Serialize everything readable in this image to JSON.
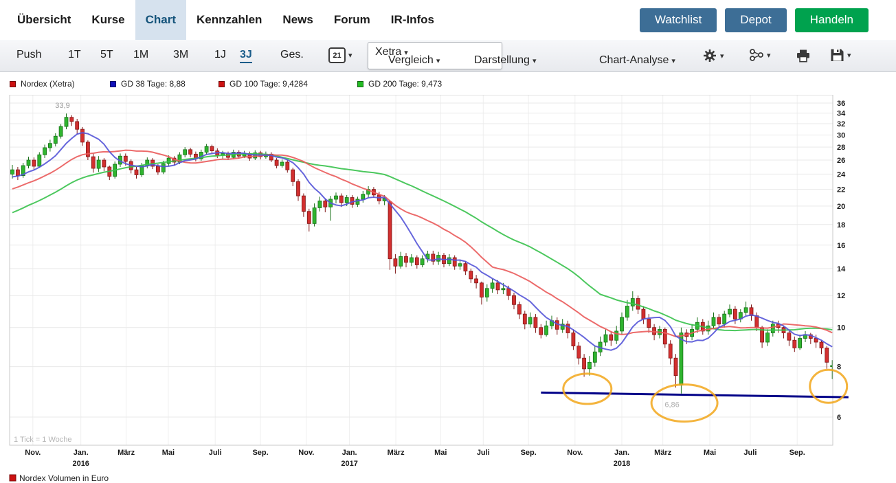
{
  "header": {
    "nav": [
      {
        "label": "Übersicht"
      },
      {
        "label": "Kurse"
      },
      {
        "label": "Chart",
        "active": true
      },
      {
        "label": "Kennzahlen"
      },
      {
        "label": "News"
      },
      {
        "label": "Forum"
      },
      {
        "label": "IR-Infos"
      }
    ],
    "actions": [
      {
        "label": "Watchlist",
        "color": "#3d6e96"
      },
      {
        "label": "Depot",
        "color": "#3d6e96"
      },
      {
        "label": "Handeln",
        "color": "#00a24e"
      }
    ]
  },
  "toolbar": {
    "ranges": [
      "Push",
      "1T",
      "5T",
      "1M",
      "3M",
      "1J",
      "3J",
      "Ges."
    ],
    "active_range": "3J",
    "calendar_day": "21",
    "exchange_value": "Xetra",
    "menus": [
      "Vergleich",
      "Darstellung",
      "Chart-Analyse"
    ]
  },
  "legend": [
    {
      "label": "Nordex (Xetra)",
      "color": "#cc1111"
    },
    {
      "label": "GD 38 Tage: 8,88",
      "color": "#1111bb"
    },
    {
      "label": "GD 100 Tage: 9,4284",
      "color": "#cc1111"
    },
    {
      "label": "GD 200 Tage: 9,473",
      "color": "#22bb22"
    }
  ],
  "chart_data": {
    "type": "candlestick",
    "instrument": "Nordex (Xetra)",
    "tick_note": "1 Tick = 1 Woche",
    "volume_legend": "Nordex Volumen in Euro",
    "y_scale": "log",
    "y_ticks": [
      36,
      34,
      32,
      30,
      28,
      26,
      24,
      22,
      20,
      18,
      16,
      14,
      12,
      10,
      8,
      6
    ],
    "x_labels": [
      {
        "text": "Nov.",
        "week": 3.8
      },
      {
        "text": "Jan.",
        "week": 12.7,
        "year": "2016"
      },
      {
        "text": "März",
        "week": 21.1
      },
      {
        "text": "Mai",
        "week": 28.9
      },
      {
        "text": "Juli",
        "week": 37.6
      },
      {
        "text": "Sep.",
        "week": 46.0
      },
      {
        "text": "Nov.",
        "week": 54.5
      },
      {
        "text": "Jan.",
        "week": 62.5,
        "year": "2017"
      },
      {
        "text": "März",
        "week": 71.1
      },
      {
        "text": "Mai",
        "week": 79.4
      },
      {
        "text": "Juli",
        "week": 87.3
      },
      {
        "text": "Sep.",
        "week": 95.7
      },
      {
        "text": "Nov.",
        "week": 104.3
      },
      {
        "text": "Jan.",
        "week": 113.0,
        "year": "2018"
      },
      {
        "text": "März",
        "week": 120.6
      },
      {
        "text": "Mai",
        "week": 129.3
      },
      {
        "text": "Juli",
        "week": 136.8
      },
      {
        "text": "Sep.",
        "week": 145.5
      }
    ],
    "candle_colors": {
      "up": "#2fb52f",
      "up_border": "#187018",
      "down": "#d22f2f",
      "down_border": "#801616"
    },
    "moving_averages": [
      {
        "id": "gd-200",
        "label": "GD 200 Tage",
        "value": "9,473",
        "window_weeks": 40,
        "color": "#39c24c"
      },
      {
        "id": "gd-100",
        "label": "GD 100 Tage",
        "value": "9,4284",
        "window_weeks": 20,
        "color": "#ea5b5b"
      },
      {
        "id": "gd-38",
        "label": "GD 38 Tage",
        "value": "8,88",
        "window_weeks": 8,
        "color": "#5555d8"
      }
    ],
    "seed_closes": [
      13.5,
      13.8,
      14.2,
      14.0,
      14.6,
      15.0,
      15.3,
      15.1,
      15.8,
      16.2,
      16.0,
      16.5,
      17.0,
      17.4,
      17.2,
      17.8,
      18.3,
      18.0,
      18.6,
      19.0,
      19.4,
      19.2,
      19.8,
      20.3,
      20.0,
      20.6,
      21.0,
      21.4,
      21.2,
      21.8,
      22.3,
      22.0,
      22.6,
      23.0,
      23.4,
      23.2,
      23.0,
      23.6,
      24.0,
      24.2
    ],
    "candles_ohlc": [
      [
        24.0,
        25.3,
        23.4,
        24.6
      ],
      [
        24.6,
        25.0,
        23.2,
        23.8
      ],
      [
        23.8,
        25.6,
        23.5,
        25.2
      ],
      [
        25.2,
        26.5,
        24.8,
        26.0
      ],
      [
        26.0,
        26.4,
        24.6,
        25.1
      ],
      [
        25.1,
        27.2,
        24.9,
        26.8
      ],
      [
        26.8,
        28.4,
        26.3,
        27.9
      ],
      [
        27.9,
        29.2,
        27.3,
        28.6
      ],
      [
        28.6,
        30.3,
        28.1,
        29.8
      ],
      [
        29.8,
        31.9,
        29.4,
        31.5
      ],
      [
        31.5,
        33.9,
        31.0,
        33.2
      ],
      [
        33.2,
        33.6,
        31.6,
        32.4
      ],
      [
        32.4,
        32.9,
        30.2,
        31.0
      ],
      [
        31.0,
        31.4,
        28.2,
        28.8
      ],
      [
        28.8,
        29.1,
        26.0,
        26.5
      ],
      [
        26.5,
        27.0,
        24.2,
        24.8
      ],
      [
        24.8,
        26.6,
        24.3,
        26.0
      ],
      [
        26.0,
        26.3,
        24.4,
        25.0
      ],
      [
        25.0,
        25.2,
        23.2,
        23.7
      ],
      [
        23.7,
        25.8,
        23.4,
        25.4
      ],
      [
        25.4,
        27.0,
        25.0,
        26.6
      ],
      [
        26.6,
        27.0,
        25.2,
        25.8
      ],
      [
        25.8,
        26.1,
        24.1,
        24.6
      ],
      [
        24.6,
        25.0,
        23.4,
        23.9
      ],
      [
        23.9,
        25.6,
        23.6,
        25.2
      ],
      [
        25.2,
        26.4,
        24.8,
        26.0
      ],
      [
        26.0,
        26.3,
        24.7,
        25.1
      ],
      [
        25.1,
        25.4,
        23.9,
        24.3
      ],
      [
        24.3,
        25.9,
        24.0,
        25.5
      ],
      [
        25.5,
        26.7,
        25.1,
        26.3
      ],
      [
        26.3,
        26.6,
        25.2,
        25.7
      ],
      [
        25.7,
        27.2,
        25.4,
        26.8
      ],
      [
        26.8,
        28.0,
        26.4,
        27.6
      ],
      [
        27.6,
        27.9,
        26.4,
        26.9
      ],
      [
        26.9,
        27.3,
        25.8,
        26.2
      ],
      [
        26.2,
        27.6,
        25.9,
        27.2
      ],
      [
        27.2,
        28.5,
        26.8,
        28.1
      ],
      [
        28.1,
        28.4,
        27.0,
        27.4
      ],
      [
        27.4,
        27.8,
        26.3,
        26.7
      ],
      [
        26.7,
        27.4,
        26.2,
        27.0
      ],
      [
        27.0,
        27.3,
        26.0,
        26.4
      ],
      [
        26.4,
        27.6,
        26.1,
        27.2
      ],
      [
        27.2,
        27.5,
        26.2,
        26.6
      ],
      [
        26.6,
        27.4,
        26.3,
        27.0
      ],
      [
        27.0,
        27.3,
        25.9,
        26.3
      ],
      [
        26.3,
        27.5,
        26.0,
        27.1
      ],
      [
        27.1,
        27.4,
        26.1,
        26.5
      ],
      [
        26.5,
        27.3,
        26.2,
        26.9
      ],
      [
        26.9,
        27.2,
        25.7,
        26.0
      ],
      [
        26.0,
        26.3,
        24.8,
        25.2
      ],
      [
        25.2,
        26.1,
        24.9,
        25.7
      ],
      [
        25.7,
        26.0,
        24.2,
        24.6
      ],
      [
        24.6,
        24.9,
        22.4,
        23.0
      ],
      [
        23.0,
        23.3,
        20.6,
        21.2
      ],
      [
        21.2,
        21.5,
        18.8,
        19.4
      ],
      [
        19.4,
        19.7,
        17.3,
        18.1
      ],
      [
        18.1,
        20.3,
        17.8,
        19.8
      ],
      [
        19.8,
        21.1,
        19.4,
        20.6
      ],
      [
        20.6,
        20.9,
        19.3,
        19.9
      ],
      [
        19.9,
        21.2,
        18.4,
        20.8
      ],
      [
        20.8,
        21.6,
        20.3,
        21.2
      ],
      [
        21.2,
        21.5,
        19.9,
        20.4
      ],
      [
        20.4,
        21.3,
        20.0,
        21.0
      ],
      [
        21.0,
        21.3,
        19.8,
        20.2
      ],
      [
        20.2,
        21.1,
        19.9,
        20.8
      ],
      [
        20.8,
        21.8,
        20.4,
        21.4
      ],
      [
        21.4,
        22.4,
        21.0,
        22.0
      ],
      [
        22.0,
        22.3,
        21.0,
        21.3
      ],
      [
        21.3,
        21.7,
        20.2,
        20.6
      ],
      [
        20.6,
        21.3,
        20.1,
        20.9
      ],
      [
        20.5,
        20.7,
        13.9,
        14.8
      ],
      [
        14.8,
        15.2,
        13.6,
        14.2
      ],
      [
        14.2,
        15.4,
        14.0,
        15.0
      ],
      [
        15.0,
        15.3,
        14.1,
        14.5
      ],
      [
        14.5,
        15.2,
        14.2,
        14.9
      ],
      [
        14.9,
        15.1,
        14.0,
        14.3
      ],
      [
        14.3,
        15.1,
        14.1,
        14.8
      ],
      [
        14.8,
        15.5,
        14.5,
        15.2
      ],
      [
        15.2,
        15.5,
        14.3,
        14.6
      ],
      [
        14.6,
        15.4,
        14.3,
        15.1
      ],
      [
        15.1,
        15.3,
        14.1,
        14.4
      ],
      [
        14.4,
        15.2,
        14.2,
        14.9
      ],
      [
        14.9,
        15.1,
        13.9,
        14.2
      ],
      [
        14.2,
        14.7,
        13.9,
        14.4
      ],
      [
        14.4,
        14.6,
        13.5,
        13.8
      ],
      [
        13.8,
        14.0,
        12.9,
        13.2
      ],
      [
        13.2,
        13.5,
        12.5,
        12.9
      ],
      [
        12.9,
        13.0,
        11.4,
        11.9
      ],
      [
        11.9,
        12.8,
        11.6,
        12.5
      ],
      [
        12.5,
        13.2,
        12.2,
        12.9
      ],
      [
        12.9,
        13.1,
        12.1,
        12.4
      ],
      [
        12.4,
        12.9,
        12.1,
        12.5
      ],
      [
        12.5,
        12.7,
        11.7,
        12.0
      ],
      [
        12.0,
        12.2,
        11.1,
        11.4
      ],
      [
        11.4,
        11.6,
        10.5,
        10.8
      ],
      [
        10.8,
        11.0,
        9.9,
        10.2
      ],
      [
        10.2,
        10.9,
        10.0,
        10.6
      ],
      [
        10.6,
        10.8,
        9.7,
        10.0
      ],
      [
        10.0,
        10.2,
        9.4,
        9.6
      ],
      [
        9.6,
        10.4,
        9.5,
        10.1
      ],
      [
        10.1,
        10.7,
        9.9,
        10.4
      ],
      [
        10.4,
        10.6,
        9.6,
        9.9
      ],
      [
        9.9,
        10.5,
        9.7,
        10.2
      ],
      [
        10.2,
        10.4,
        9.4,
        9.7
      ],
      [
        9.7,
        9.9,
        8.8,
        9.0
      ],
      [
        9.0,
        9.2,
        8.1,
        8.4
      ],
      [
        8.4,
        8.6,
        7.55,
        7.9
      ],
      [
        7.9,
        8.5,
        7.6,
        8.2
      ],
      [
        8.2,
        9.0,
        8.0,
        8.7
      ],
      [
        8.7,
        9.5,
        8.5,
        9.2
      ],
      [
        9.2,
        9.9,
        9.0,
        9.6
      ],
      [
        9.6,
        9.8,
        9.0,
        9.3
      ],
      [
        9.3,
        10.1,
        9.1,
        9.8
      ],
      [
        9.8,
        10.9,
        9.6,
        10.6
      ],
      [
        10.6,
        11.7,
        10.4,
        11.3
      ],
      [
        11.3,
        12.3,
        11.0,
        11.8
      ],
      [
        11.8,
        12.0,
        10.8,
        11.1
      ],
      [
        11.1,
        11.3,
        10.2,
        10.5
      ],
      [
        10.5,
        10.8,
        9.7,
        10.0
      ],
      [
        10.0,
        10.2,
        9.3,
        9.6
      ],
      [
        9.6,
        10.1,
        9.4,
        9.9
      ],
      [
        9.9,
        10.0,
        8.9,
        9.1
      ],
      [
        9.1,
        9.3,
        8.1,
        8.4
      ],
      [
        8.4,
        8.6,
        7.1,
        7.6
      ],
      [
        7.2,
        10.0,
        6.86,
        9.7
      ],
      [
        9.7,
        9.9,
        9.1,
        9.5
      ],
      [
        9.5,
        10.2,
        9.3,
        9.9
      ],
      [
        9.9,
        10.6,
        9.7,
        10.3
      ],
      [
        10.3,
        10.5,
        9.6,
        9.8
      ],
      [
        9.8,
        10.4,
        9.6,
        10.1
      ],
      [
        10.1,
        10.9,
        9.9,
        10.6
      ],
      [
        10.6,
        10.8,
        10.0,
        10.2
      ],
      [
        10.2,
        11.0,
        10.0,
        10.8
      ],
      [
        10.8,
        11.4,
        10.6,
        11.1
      ],
      [
        11.1,
        11.3,
        10.2,
        10.5
      ],
      [
        10.5,
        11.1,
        10.3,
        10.9
      ],
      [
        10.9,
        11.6,
        10.7,
        11.2
      ],
      [
        11.2,
        11.4,
        10.4,
        10.7
      ],
      [
        10.7,
        10.9,
        9.8,
        10.0
      ],
      [
        10.0,
        10.1,
        8.9,
        9.2
      ],
      [
        9.2,
        9.9,
        9.0,
        9.7
      ],
      [
        9.7,
        10.4,
        9.5,
        10.2
      ],
      [
        10.2,
        10.4,
        9.7,
        10.0
      ],
      [
        10.0,
        10.1,
        9.4,
        9.7
      ],
      [
        9.7,
        9.8,
        9.0,
        9.3
      ],
      [
        9.3,
        9.5,
        8.7,
        8.9
      ],
      [
        8.9,
        9.6,
        8.8,
        9.4
      ],
      [
        9.4,
        9.8,
        9.2,
        9.6
      ],
      [
        9.6,
        9.7,
        9.1,
        9.4
      ],
      [
        9.4,
        9.6,
        8.9,
        9.2
      ],
      [
        9.2,
        9.3,
        8.6,
        8.9
      ],
      [
        8.9,
        9.0,
        7.9,
        8.2
      ],
      [
        8.0,
        8.3,
        7.45,
        8.05
      ]
    ],
    "annotations": {
      "peak_label": {
        "text": "33,9",
        "week": 9.3,
        "price": 35.0
      },
      "low_label": {
        "text": "6,86",
        "week": 122.3,
        "price": 6.35
      },
      "trendline": {
        "from_week": 98,
        "from_price": 6.9,
        "to_week": 155,
        "to_price": 6.72,
        "color": "#000088"
      },
      "ellipse_color": "#f2a71b",
      "ellipses": [
        {
          "week": 106.6,
          "price": 7.05,
          "rx": 35,
          "ry": 22
        },
        {
          "week": 124.6,
          "price": 6.5,
          "rx": 48,
          "ry": 27
        },
        {
          "week": 151.3,
          "price": 7.15,
          "rx": 27,
          "ry": 24
        }
      ]
    }
  }
}
